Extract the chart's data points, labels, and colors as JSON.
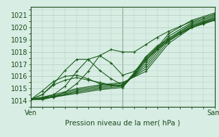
{
  "title": "Pression niveau de la mer( hPa )",
  "ylabel_ticks": [
    1014,
    1015,
    1016,
    1017,
    1018,
    1019,
    1020,
    1021
  ],
  "ylim": [
    1013.5,
    1021.7
  ],
  "xlim": [
    0,
    48
  ],
  "xtick_positions": [
    0,
    24,
    48
  ],
  "xtick_labels": [
    "Ven",
    "",
    "Sam"
  ],
  "bg_color": "#d8ede4",
  "grid_color": "#b0ccbe",
  "line_color": "#1a5c1a",
  "vline_x": 24,
  "vline_color": "#4a6a4a",
  "font_color": "#1a4a1a",
  "lines": [
    [
      0.0,
      1014.1,
      6.0,
      1014.3,
      12.0,
      1014.6,
      18.0,
      1014.9,
      24.0,
      1015.1,
      30.0,
      1017.2,
      36.0,
      1019.5,
      42.0,
      1020.6,
      48.0,
      1021.2
    ],
    [
      0.0,
      1014.1,
      6.0,
      1014.3,
      12.0,
      1014.7,
      18.0,
      1015.0,
      24.0,
      1015.2,
      30.0,
      1017.0,
      36.0,
      1019.3,
      42.0,
      1020.4,
      48.0,
      1021.0
    ],
    [
      0.0,
      1014.1,
      6.0,
      1014.3,
      12.0,
      1014.8,
      18.0,
      1015.1,
      24.0,
      1015.3,
      30.0,
      1016.8,
      36.0,
      1019.1,
      42.0,
      1020.3,
      48.0,
      1020.9
    ],
    [
      0.0,
      1014.1,
      6.0,
      1014.4,
      12.0,
      1014.9,
      18.0,
      1015.2,
      24.0,
      1015.4,
      30.0,
      1016.6,
      36.0,
      1018.9,
      42.0,
      1020.1,
      48.0,
      1020.8
    ],
    [
      0.0,
      1014.1,
      6.0,
      1014.5,
      12.0,
      1015.0,
      18.0,
      1015.3,
      24.0,
      1015.5,
      30.0,
      1016.4,
      36.0,
      1018.7,
      42.0,
      1020.0,
      48.0,
      1020.7
    ],
    [
      0.0,
      1014.1,
      3.0,
      1014.5,
      6.0,
      1015.3,
      9.0,
      1015.7,
      12.0,
      1015.9,
      15.0,
      1015.7,
      18.0,
      1015.5,
      21.0,
      1015.3,
      24.0,
      1015.2,
      27.0,
      1016.3,
      30.0,
      1017.6,
      33.0,
      1018.5,
      36.0,
      1019.1,
      39.0,
      1019.7,
      42.0,
      1020.2,
      45.0,
      1020.5,
      48.0,
      1020.8
    ],
    [
      0.0,
      1014.1,
      3.0,
      1014.8,
      6.0,
      1015.6,
      9.0,
      1016.0,
      12.0,
      1016.1,
      15.0,
      1015.8,
      18.0,
      1015.4,
      21.0,
      1015.3,
      24.0,
      1015.2,
      27.0,
      1016.2,
      30.0,
      1017.5,
      33.0,
      1018.4,
      36.0,
      1019.0,
      39.0,
      1019.6,
      42.0,
      1020.1,
      45.0,
      1020.4,
      48.0,
      1020.7
    ],
    [
      0.0,
      1014.1,
      3.0,
      1014.5,
      6.0,
      1015.4,
      9.0,
      1016.5,
      12.0,
      1017.4,
      15.0,
      1017.4,
      18.0,
      1016.5,
      21.0,
      1015.8,
      24.0,
      1015.3,
      27.0,
      1016.1,
      30.0,
      1017.4,
      33.0,
      1018.3,
      36.0,
      1018.9,
      39.0,
      1019.5,
      42.0,
      1020.0,
      45.0,
      1020.3,
      48.0,
      1020.6
    ],
    [
      0.0,
      1014.1,
      3.0,
      1014.2,
      6.0,
      1014.5,
      9.0,
      1015.2,
      12.0,
      1016.4,
      15.0,
      1017.4,
      18.0,
      1017.7,
      21.0,
      1017.1,
      24.0,
      1016.1,
      27.0,
      1016.4,
      30.0,
      1017.3,
      33.0,
      1018.2,
      36.0,
      1018.9,
      39.0,
      1019.5,
      42.0,
      1020.0,
      45.0,
      1020.3,
      48.0,
      1020.6
    ],
    [
      0.0,
      1014.1,
      3.0,
      1014.1,
      6.0,
      1014.3,
      9.0,
      1014.7,
      12.0,
      1015.4,
      15.0,
      1016.4,
      18.0,
      1017.7,
      21.0,
      1018.2,
      24.0,
      1018.0,
      27.0,
      1018.0,
      30.0,
      1018.6,
      33.0,
      1019.2,
      36.0,
      1019.7,
      39.0,
      1020.1,
      42.0,
      1020.5,
      45.0,
      1020.8,
      48.0,
      1021.1
    ]
  ]
}
